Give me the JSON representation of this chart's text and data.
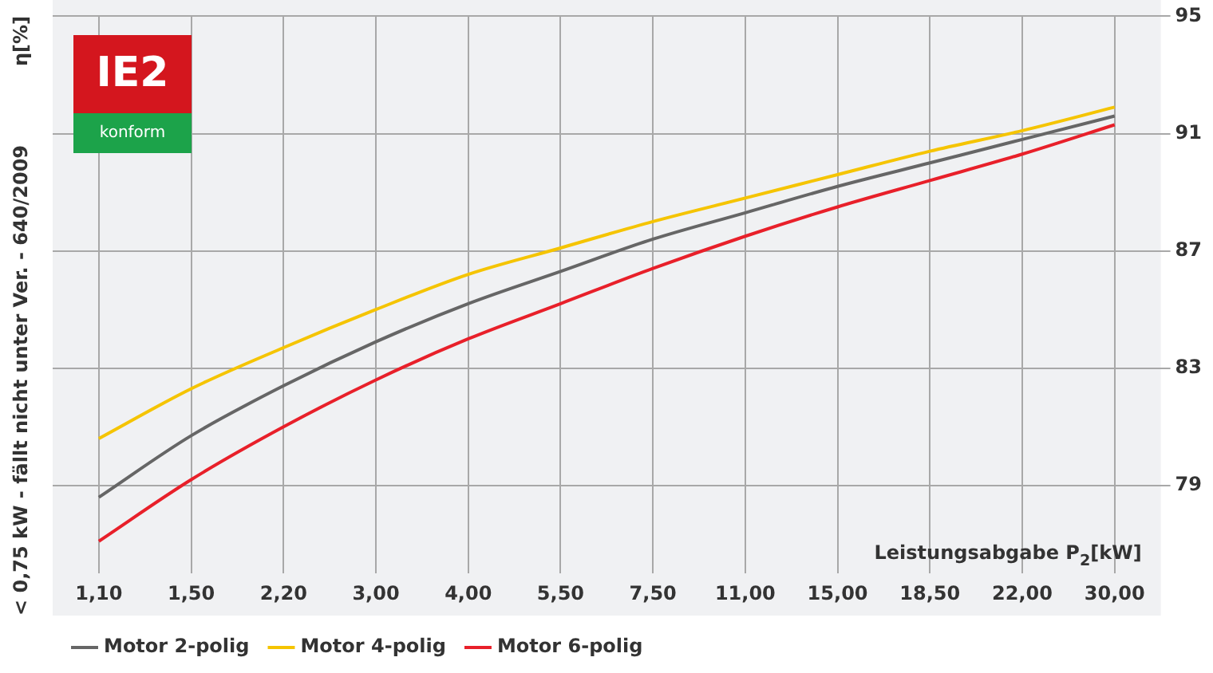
{
  "chart_data": {
    "type": "line",
    "ylabel": "η[%]",
    "xlabel": "Leistungsabgabe P$_{2}$[kW]",
    "annotations": [
      "< 0,75 kW - fällt nicht unter Ver. - 640/2009",
      "IE2",
      "konform"
    ],
    "categories": [
      "1,10",
      "1,50",
      "2,20",
      "3,00",
      "4,00",
      "5,50",
      "7,50",
      "11,00",
      "15,00",
      "18,50",
      "22,00",
      "30,00"
    ],
    "series": [
      {
        "name": "Motor 2-polig",
        "color": "#666666",
        "values": [
          78.6,
          80.7,
          82.4,
          83.9,
          85.2,
          86.3,
          87.4,
          88.3,
          89.2,
          90.0,
          90.8,
          91.6
        ]
      },
      {
        "name": "Motor 4-polig",
        "color": "#f5c400",
        "values": [
          80.6,
          82.3,
          83.7,
          85.0,
          86.2,
          87.1,
          88.0,
          88.8,
          89.6,
          90.4,
          91.1,
          91.9
        ]
      },
      {
        "name": "Motor 6-polig",
        "color": "#e8202a",
        "values": [
          77.1,
          79.2,
          81.0,
          82.6,
          84.0,
          85.2,
          86.4,
          87.5,
          88.5,
          89.4,
          90.3,
          91.3
        ]
      }
    ],
    "ylim": [
      76,
      95
    ],
    "yticks": [
      79,
      83,
      87,
      91,
      95
    ],
    "grid": true,
    "legend": "bottom",
    "marker": "none",
    "line_style": "solid"
  }
}
